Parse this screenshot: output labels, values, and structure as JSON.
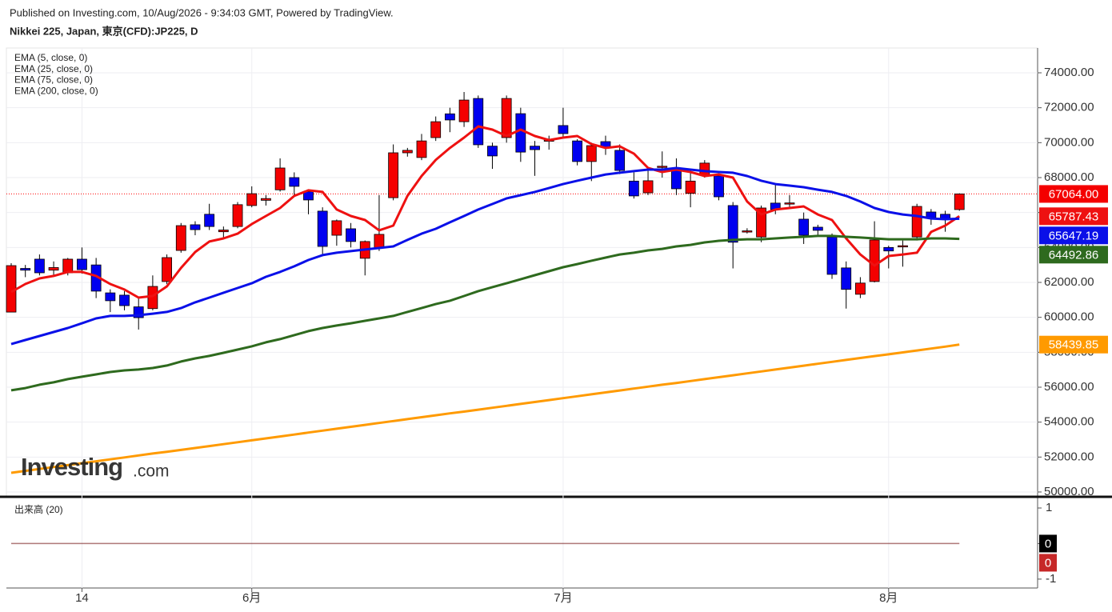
{
  "header": {
    "published": "Published on Investing.com, 10/Aug/2026 - 9:34:03 GMT, Powered by TradingView.",
    "symbol": "Nikkei 225, Japan, 東京(CFD):JP225, D"
  },
  "watermark": {
    "brand": "Investing",
    "suffix": ".com"
  },
  "chart_data": [
    {
      "type": "candlestick",
      "categories": [
        null,
        null,
        null,
        null,
        null,
        "14",
        null,
        null,
        null,
        null,
        null,
        null,
        null,
        null,
        null,
        null,
        null,
        "6月",
        null,
        null,
        null,
        null,
        null,
        null,
        null,
        null,
        null,
        null,
        null,
        null,
        null,
        null,
        null,
        null,
        null,
        null,
        null,
        null,
        null,
        "7月",
        null,
        null,
        null,
        null,
        null,
        null,
        null,
        null,
        null,
        null,
        null,
        null,
        null,
        null,
        null,
        null,
        null,
        null,
        null,
        null,
        null,
        null,
        "8月",
        null,
        null,
        null,
        null,
        null
      ],
      "open": [
        60300,
        62800,
        63330,
        62700,
        62550,
        63330,
        63000,
        61400,
        61270,
        60600,
        60500,
        62050,
        63830,
        65300,
        65900,
        64900,
        65200,
        66400,
        66700,
        67300,
        68000,
        67200,
        66080,
        64700,
        65070,
        63380,
        63970,
        66850,
        69420,
        69150,
        70290,
        71650,
        71200,
        72530,
        69800,
        70290,
        71660,
        69800,
        70100,
        70980,
        70100,
        68920,
        70060,
        69560,
        67800,
        67130,
        68600,
        68500,
        67100,
        68140,
        68100,
        66400,
        64900,
        64600,
        66540,
        66500,
        65620,
        65160,
        64600,
        62830,
        61320,
        62050,
        64000,
        64050,
        64600,
        66030,
        65900,
        66170
      ],
      "high": [
        63100,
        63000,
        63600,
        63200,
        63400,
        64000,
        63400,
        61600,
        61500,
        61100,
        62400,
        63600,
        65400,
        65500,
        66500,
        65200,
        66600,
        67500,
        67000,
        69100,
        68300,
        67300,
        66300,
        65600,
        65400,
        64400,
        67000,
        69900,
        69700,
        70500,
        71500,
        72000,
        72900,
        72700,
        70000,
        72700,
        72000,
        70100,
        70400,
        72000,
        70200,
        70000,
        70400,
        69900,
        68300,
        68500,
        69500,
        69100,
        68300,
        69000,
        68200,
        66600,
        65100,
        66400,
        67600,
        67000,
        66000,
        65300,
        64800,
        63200,
        62300,
        65500,
        64100,
        64400,
        66500,
        66200,
        66100,
        67100
      ],
      "low": [
        60300,
        62300,
        62400,
        62400,
        62400,
        62500,
        61100,
        60300,
        60400,
        59300,
        60400,
        61900,
        63700,
        64700,
        65000,
        64500,
        65100,
        66300,
        66400,
        67200,
        67000,
        65900,
        63500,
        64100,
        64000,
        62400,
        63800,
        66700,
        69200,
        69000,
        70100,
        70600,
        70900,
        69700,
        68500,
        70000,
        68900,
        68100,
        69600,
        70300,
        68700,
        67800,
        69300,
        68200,
        66800,
        67000,
        68000,
        67000,
        66300,
        68000,
        66700,
        62800,
        64800,
        64300,
        65900,
        66200,
        64200,
        64700,
        62200,
        60500,
        61100,
        62000,
        62800,
        62900,
        64400,
        65300,
        64900,
        66100
      ],
      "close": [
        62960,
        62700,
        62550,
        62850,
        63330,
        62730,
        61500,
        60950,
        60670,
        59980,
        61770,
        63420,
        65250,
        65020,
        65200,
        65000,
        66450,
        67080,
        66800,
        68550,
        67500,
        66720,
        64060,
        65530,
        64340,
        64340,
        64750,
        69420,
        69560,
        70100,
        71200,
        71300,
        72440,
        69880,
        69240,
        72530,
        69460,
        69600,
        70150,
        70520,
        68920,
        69830,
        69740,
        68410,
        66950,
        67820,
        68650,
        67360,
        67800,
        68830,
        66900,
        64300,
        64950,
        66260,
        66170,
        66550,
        64700,
        64980,
        62460,
        61600,
        61960,
        64430,
        63800,
        64100,
        66350,
        65700,
        65660,
        67064
      ],
      "last_close_label": "67064.00",
      "up_color": "#f40000",
      "down_color": "#0000f0",
      "wick_color": "#000000",
      "series": [
        {
          "name": "EMA (5, close, 0)",
          "color": "#ee1111",
          "values": [
            61450,
            61910,
            62230,
            62370,
            62600,
            62600,
            62370,
            61910,
            61590,
            61130,
            61220,
            61770,
            62830,
            63740,
            64340,
            64520,
            64790,
            65340,
            65800,
            66260,
            66950,
            67270,
            67180,
            66170,
            65800,
            65570,
            64980,
            65250,
            66950,
            68090,
            69010,
            69700,
            70290,
            70930,
            70750,
            70380,
            70750,
            70380,
            70150,
            70290,
            70380,
            69920,
            69700,
            69790,
            69370,
            68550,
            68320,
            68460,
            68320,
            68090,
            68180,
            68000,
            66630,
            65890,
            66170,
            66260,
            66350,
            65890,
            65570,
            64520,
            63600,
            62960,
            63510,
            63600,
            63700,
            64890,
            65250,
            65787.43
          ]
        },
        {
          "name": "EMA (25, close, 0)",
          "color": "#0a10e8",
          "values": [
            58470,
            58700,
            58930,
            59160,
            59390,
            59660,
            59940,
            60080,
            60080,
            60120,
            60210,
            60310,
            60530,
            60860,
            61130,
            61410,
            61680,
            61950,
            62320,
            62600,
            62920,
            63280,
            63560,
            63700,
            63790,
            63880,
            63970,
            64060,
            64430,
            64790,
            65070,
            65440,
            65800,
            66170,
            66490,
            66810,
            66990,
            67180,
            67400,
            67630,
            67820,
            68000,
            68180,
            68280,
            68370,
            68460,
            68460,
            68550,
            68460,
            68370,
            68320,
            68280,
            68090,
            67820,
            67630,
            67540,
            67450,
            67310,
            67180,
            66950,
            66630,
            66260,
            66030,
            65890,
            65800,
            65660,
            65620,
            65647.19
          ]
        },
        {
          "name": "EMA (75, close, 0)",
          "color": "#2e6a1e",
          "values": [
            55820,
            55950,
            56140,
            56280,
            56460,
            56600,
            56730,
            56870,
            56960,
            57010,
            57100,
            57240,
            57470,
            57650,
            57790,
            57970,
            58150,
            58340,
            58570,
            58750,
            58980,
            59210,
            59390,
            59530,
            59660,
            59800,
            59940,
            60080,
            60310,
            60530,
            60760,
            60950,
            61220,
            61500,
            61730,
            61950,
            62180,
            62410,
            62640,
            62870,
            63050,
            63240,
            63420,
            63600,
            63700,
            63830,
            63920,
            64060,
            64150,
            64290,
            64380,
            64430,
            64470,
            64470,
            64520,
            64570,
            64610,
            64660,
            64660,
            64610,
            64570,
            64520,
            64470,
            64470,
            64470,
            64520,
            64520,
            64492.86
          ]
        },
        {
          "name": "EMA (200, close, 0)",
          "color": "#ff9a00",
          "values": [
            51100,
            51210,
            51320,
            51430,
            51540,
            51650,
            51760,
            51870,
            51980,
            52090,
            52200,
            52300,
            52410,
            52520,
            52630,
            52740,
            52850,
            52960,
            53070,
            53180,
            53290,
            53400,
            53510,
            53620,
            53730,
            53840,
            53950,
            54060,
            54170,
            54280,
            54390,
            54500,
            54600,
            54710,
            54820,
            54930,
            55040,
            55150,
            55260,
            55370,
            55480,
            55590,
            55700,
            55810,
            55920,
            56030,
            56140,
            56240,
            56350,
            56460,
            56570,
            56680,
            56790,
            56900,
            57010,
            57120,
            57230,
            57340,
            57450,
            57560,
            57670,
            57780,
            57880,
            57990,
            58100,
            58210,
            58320,
            58439.85
          ]
        }
      ],
      "ylim": [
        49770,
        75420
      ],
      "yticks": [
        {
          "value": 50000,
          "label": "50000.00"
        },
        {
          "value": 52000,
          "label": "52000.00"
        },
        {
          "value": 54000,
          "label": "54000.00"
        },
        {
          "value": 56000,
          "label": "56000.00"
        },
        {
          "value": 58000,
          "label": "58000.00"
        },
        {
          "value": 60000,
          "label": "60000.00"
        },
        {
          "value": 62000,
          "label": "62000.00"
        },
        {
          "value": 64000,
          "label": "64000.00"
        },
        {
          "value": 66000,
          "label": "66000.00"
        },
        {
          "value": 68000,
          "label": "68000.00"
        },
        {
          "value": 70000,
          "label": "70000.00"
        },
        {
          "value": 72000,
          "label": "72000.00"
        },
        {
          "value": 74000,
          "label": "74000.00"
        }
      ],
      "grid": true
    },
    {
      "type": "line",
      "title": "出来高 (20)",
      "series": [
        {
          "color": "#000000",
          "values": [
            0,
            0,
            0,
            0,
            0,
            0,
            0,
            0,
            0,
            0,
            0,
            0,
            0,
            0,
            0,
            0,
            0,
            0,
            0,
            0,
            0,
            0,
            0,
            0,
            0,
            0,
            0,
            0,
            0,
            0,
            0,
            0,
            0,
            0,
            0,
            0,
            0,
            0,
            0,
            0,
            0,
            0,
            0,
            0,
            0,
            0,
            0,
            0,
            0,
            0,
            0,
            0,
            0,
            0,
            0,
            0,
            0,
            0,
            0,
            0,
            0,
            0,
            0,
            0,
            0,
            0,
            0,
            0
          ]
        },
        {
          "color": "#c62828",
          "values": [
            0,
            0,
            0,
            0,
            0,
            0,
            0,
            0,
            0,
            0,
            0,
            0,
            0,
            0,
            0,
            0,
            0,
            0,
            0,
            0,
            0,
            0,
            0,
            0,
            0,
            0,
            0,
            0,
            0,
            0,
            0,
            0,
            0,
            0,
            0,
            0,
            0,
            0,
            0,
            0,
            0,
            0,
            0,
            0,
            0,
            0,
            0,
            0,
            0,
            0,
            0,
            0,
            0,
            0,
            0,
            0,
            0,
            0,
            0,
            0,
            0,
            0,
            0,
            0,
            0,
            0,
            0,
            0
          ]
        }
      ],
      "ylim": [
        -1.25,
        1.27
      ],
      "yticks": [
        1,
        0,
        -1
      ]
    }
  ]
}
